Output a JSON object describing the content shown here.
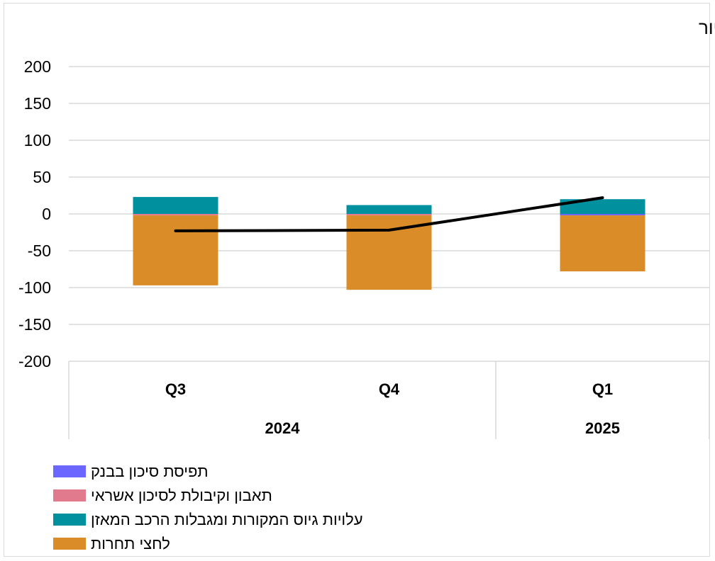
{
  "chart_data": {
    "type": "bar",
    "stacked": true,
    "title": "ב. אשראי לדיור",
    "categories": [
      "Q3",
      "Q4",
      "Q1"
    ],
    "year_groups": [
      {
        "label": "2024",
        "span": 2
      },
      {
        "label": "2025",
        "span": 1
      }
    ],
    "ylim": [
      -200,
      200
    ],
    "yticks": [
      200,
      150,
      100,
      50,
      0,
      -50,
      -100,
      -150,
      -200
    ],
    "grid": true,
    "legend_position": "bottom-right",
    "series": [
      {
        "name": "תפיסת סיכון בבנק",
        "color": "#6b66ff",
        "kind": "bar",
        "values": [
          0,
          0,
          -2
        ]
      },
      {
        "name": "תאבון וקיבולת לסיכון אשראי",
        "color": "#e07a8c",
        "kind": "bar",
        "values": [
          -2,
          -2,
          0
        ]
      },
      {
        "name": "עלויות גיוס המקורות ומגבלות הרכב המאזן",
        "color": "#00909e",
        "kind": "bar",
        "values": [
          23,
          12,
          20
        ]
      },
      {
        "name": "לחצי תחרות",
        "color": "#d98c28",
        "kind": "bar",
        "values": [
          -95,
          -101,
          -76
        ]
      }
    ],
    "net_line": {
      "color": "#000000",
      "values": [
        -23,
        -22,
        22
      ]
    }
  }
}
